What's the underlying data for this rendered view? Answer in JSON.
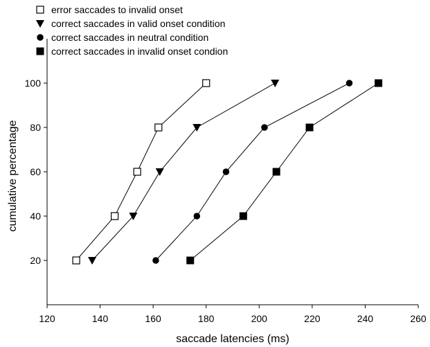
{
  "chart_data": {
    "type": "line",
    "title": "",
    "xlabel": "saccade latencies (ms)",
    "ylabel": "cumulative percentage",
    "xlim": [
      120,
      260
    ],
    "ylim": [
      0,
      120
    ],
    "xticks": [
      120,
      140,
      160,
      180,
      200,
      220,
      240,
      260
    ],
    "yticks": [
      20,
      40,
      60,
      80,
      100
    ],
    "grid": false,
    "legend_position": "top-left",
    "colors": {
      "line": "#000000",
      "marker_fill": "#000000",
      "open_marker_fill": "#ffffff"
    },
    "series": [
      {
        "name": "error saccades to invalid onset",
        "marker": "open-square",
        "x": [
          131,
          145.5,
          154,
          162,
          180
        ],
        "y": [
          20,
          40,
          60,
          80,
          100
        ]
      },
      {
        "name": "correct saccades in valid onset condition",
        "marker": "triangle-down",
        "x": [
          137,
          152.5,
          162.5,
          176.5,
          206
        ],
        "y": [
          20,
          40,
          60,
          80,
          100
        ]
      },
      {
        "name": "correct saccades in neutral condition",
        "marker": "circle",
        "x": [
          161,
          176.5,
          187.5,
          202,
          234
        ],
        "y": [
          20,
          40,
          60,
          80,
          100
        ]
      },
      {
        "name": "correct saccades in invalid onset condion",
        "marker": "filled-square",
        "x": [
          174,
          194,
          206.5,
          219,
          245
        ],
        "y": [
          20,
          40,
          60,
          80,
          100
        ]
      }
    ]
  }
}
